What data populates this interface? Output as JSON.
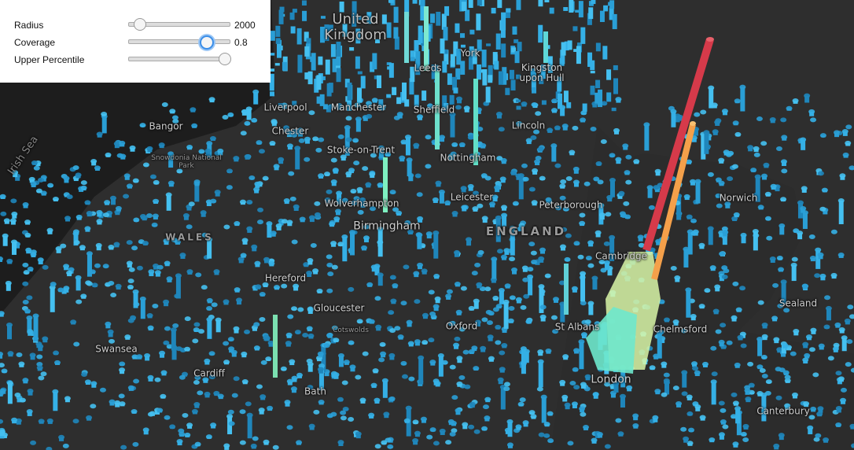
{
  "controls": [
    {
      "label": "Radius",
      "value": 2000
    },
    {
      "label": "Coverage",
      "value": 0.8
    },
    {
      "label": "Upper Percentile"
    }
  ],
  "map": {
    "country": "United Kingdom",
    "sea": "Irish Sea",
    "regions": [
      "WALES",
      "ENGLAND"
    ],
    "places": [
      "York",
      "Leeds",
      "Kingston upon Hull",
      "Liverpool",
      "Manchester",
      "Sheffield",
      "Bangor",
      "Chester",
      "Lincoln",
      "Stoke-on-Trent",
      "Nottingham",
      "Snowdonia National Park",
      "Leicester",
      "Wolverhampton",
      "Peterborough",
      "Norwich",
      "Birmingham",
      "Cambridge",
      "Hereford",
      "Sealand",
      "Gloucester",
      "Cotswolds",
      "Oxford",
      "St Albans",
      "Chelmsford",
      "Swansea",
      "Cardiff",
      "Bath",
      "London",
      "Canterbury"
    ]
  }
}
